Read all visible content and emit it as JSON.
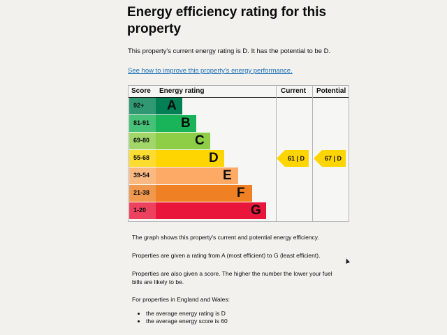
{
  "page": {
    "title": "Energy efficiency rating for this property",
    "intro": "This property's current energy rating is D. It has the potential to be D.",
    "improve_link": "See how to improve this property's energy performance."
  },
  "chart_headers": {
    "score": "Score",
    "energy_rating": "Energy rating",
    "current": "Current",
    "potential": "Potential"
  },
  "chart_data": {
    "type": "table",
    "bands": [
      {
        "range": "92+",
        "letter": "A",
        "color": "#008054"
      },
      {
        "range": "81-91",
        "letter": "B",
        "color": "#19b459"
      },
      {
        "range": "69-80",
        "letter": "C",
        "color": "#8dce46"
      },
      {
        "range": "55-68",
        "letter": "D",
        "color": "#ffd500"
      },
      {
        "range": "39-54",
        "letter": "E",
        "color": "#fcaa65"
      },
      {
        "range": "21-38",
        "letter": "F",
        "color": "#ef8023"
      },
      {
        "range": "1-20",
        "letter": "G",
        "color": "#e9153b"
      }
    ],
    "current": {
      "score": 61,
      "band": "D",
      "label": "61 | D"
    },
    "potential": {
      "score": 67,
      "band": "D",
      "label": "67 | D"
    }
  },
  "body_text": {
    "graph_explanation": "The graph shows this property's current and potential energy efficiency.",
    "ratings_explanation": "Properties are given a rating from A (most efficient) to G (least efficient).",
    "score_explanation": "Properties are also given a score. The higher the number the lower your fuel bills are likely to be.",
    "england_wales_heading": "For properties in England and Wales:",
    "averages": [
      "the average energy rating is D",
      "the average energy score is 60"
    ]
  }
}
